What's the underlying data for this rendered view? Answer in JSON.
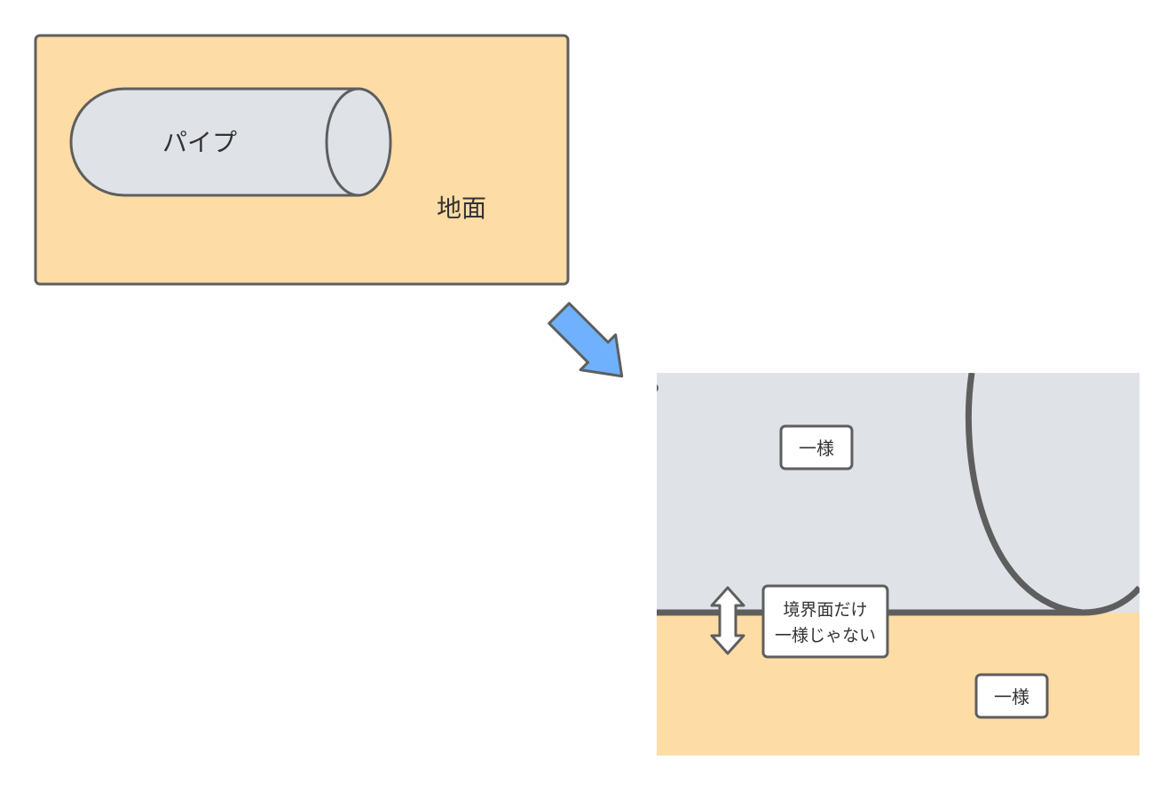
{
  "overview": {
    "pipe_label": "パイプ",
    "ground_label": "地面"
  },
  "detail": {
    "pipe_region_label": "一様",
    "boundary_label_line1": "境界面だけ",
    "boundary_label_line2": "一様じゃない",
    "ground_region_label": "一様"
  },
  "colors": {
    "ground_fill": "#fddca6",
    "pipe_fill": "#dfe2e7",
    "stroke": "#5e5e5e",
    "arrow_fill": "#6fb1fc",
    "label_box_fill": "#ffffff"
  },
  "icons": {
    "zoom_arrow": "diagonal-arrow-down-right",
    "boundary_arrow": "double-headed-vertical-arrow"
  }
}
